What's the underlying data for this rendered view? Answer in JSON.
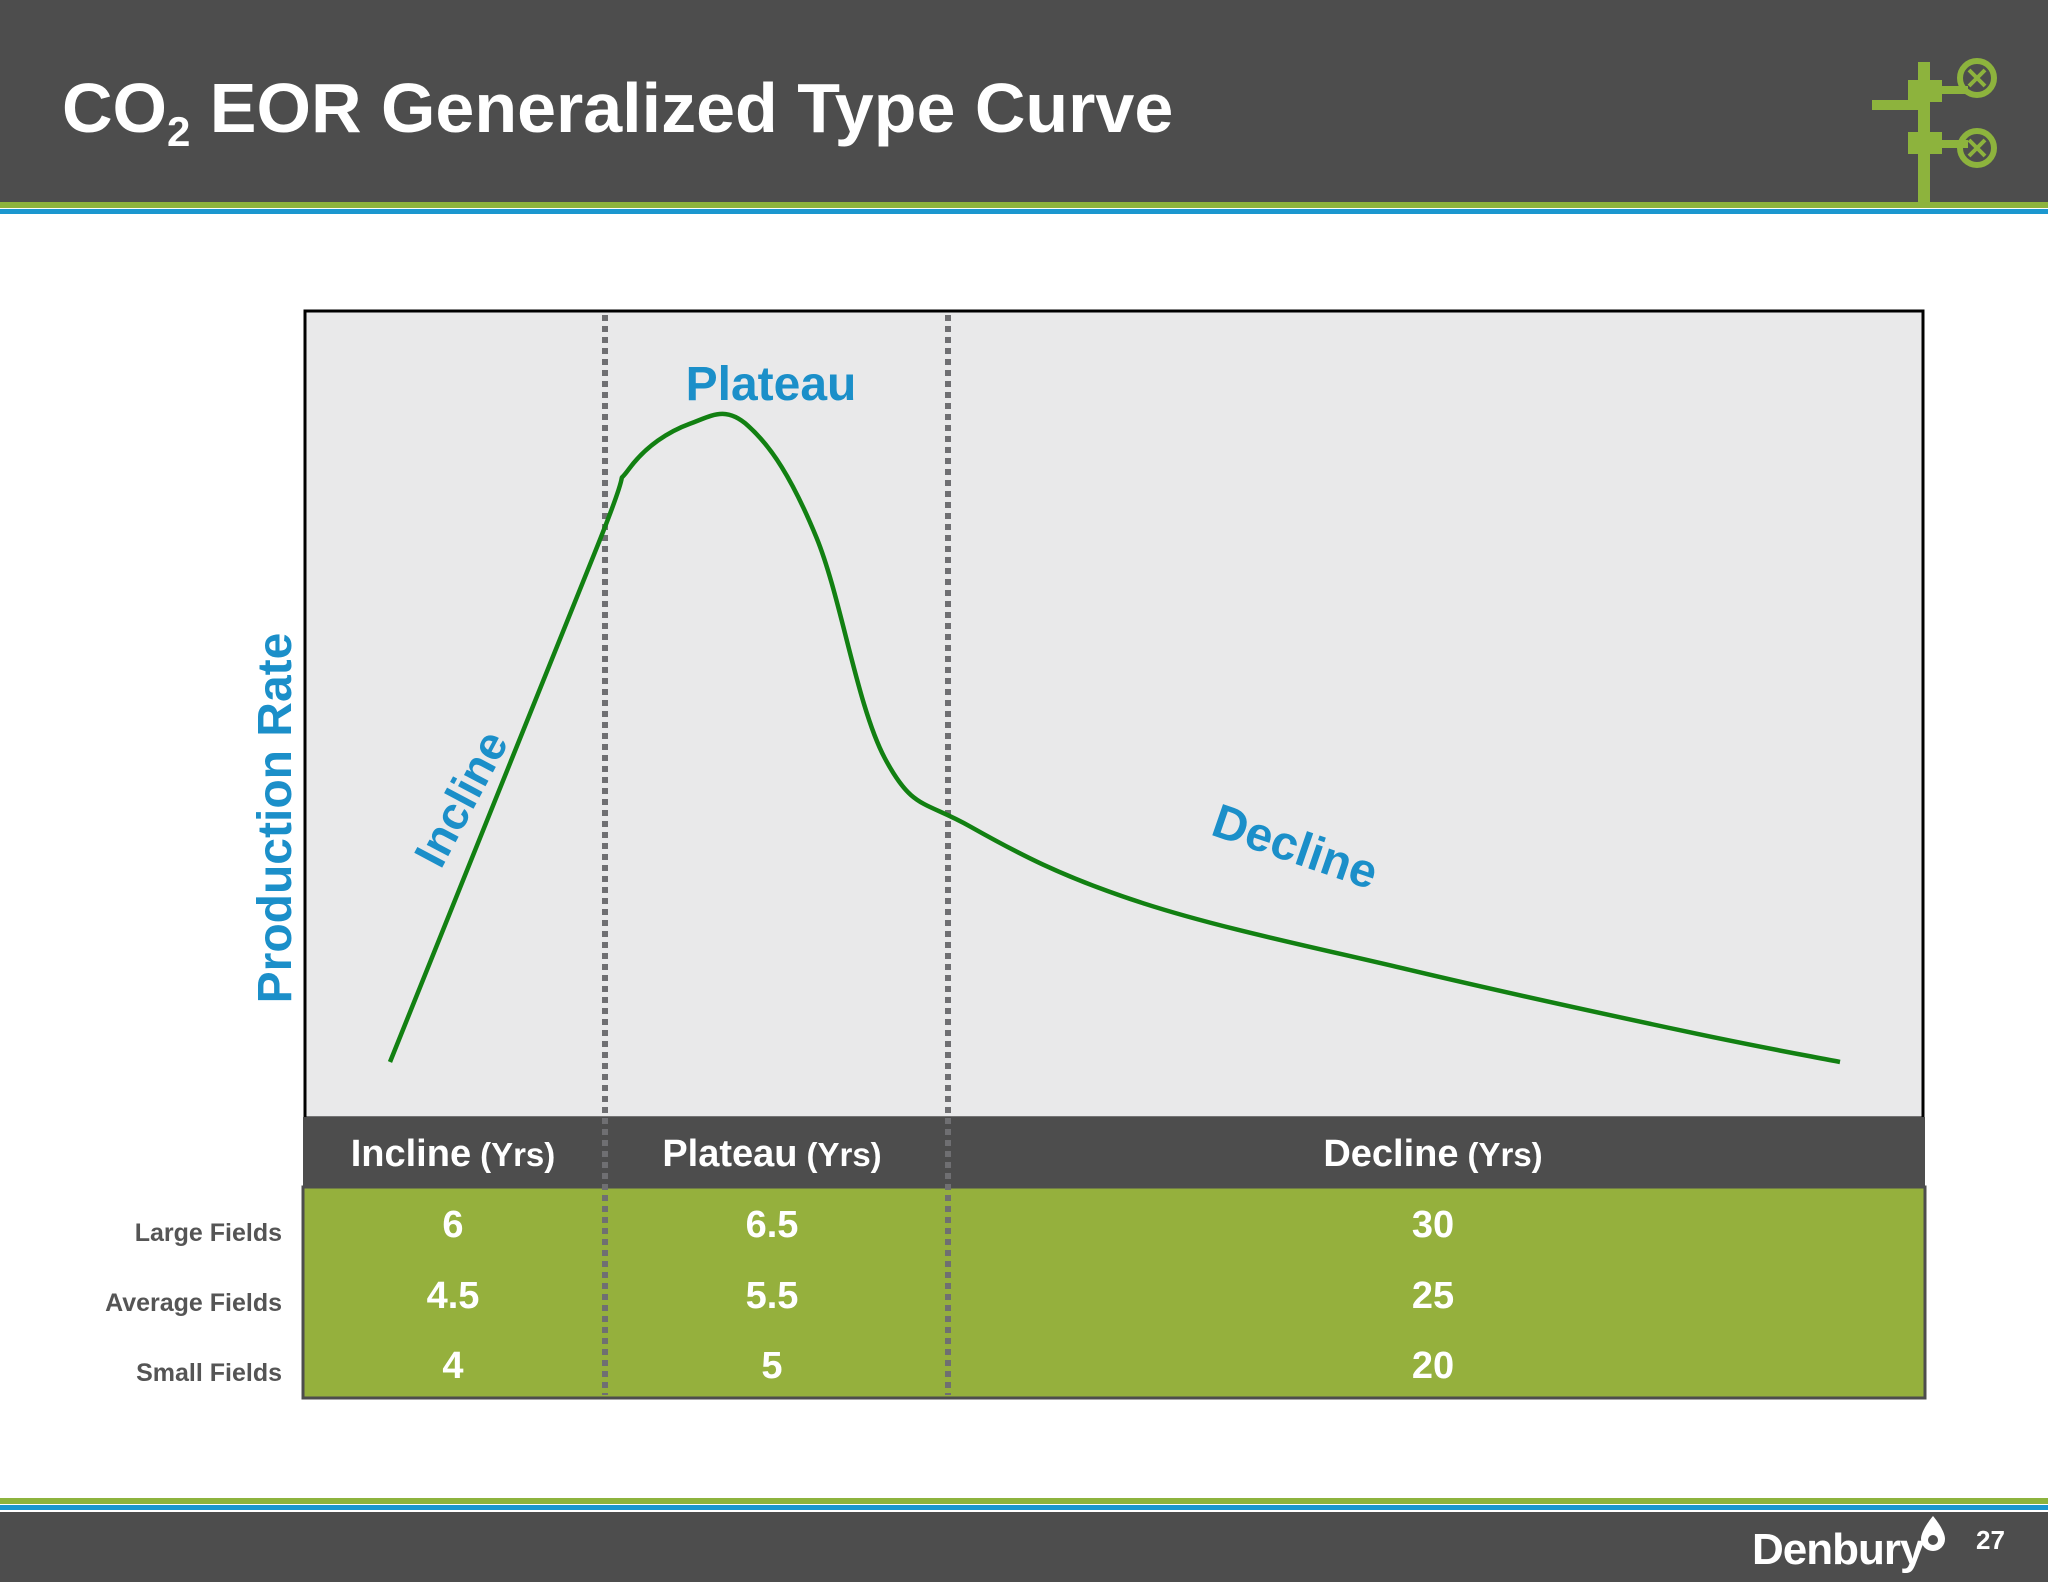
{
  "slide": {
    "title_main": "CO",
    "title_sub": "2",
    "title_rest": " EOR Generalized Type Curve",
    "company": "Denbury",
    "page_number": "27"
  },
  "colors": {
    "header_bg": "#4d4d4d",
    "accent_green": "#8db33d",
    "accent_blue": "#1b97cf",
    "curve": "#128012",
    "table_green": "#95b03d",
    "plot_bg": "#e9e9ea"
  },
  "chart_data": {
    "type": "line",
    "title": "",
    "ylabel": "Production Rate",
    "xlabel": "",
    "phases": [
      "Incline",
      "Plateau",
      "Decline"
    ],
    "series": [
      {
        "values": [
          [
            0,
            0.05
          ],
          [
            6,
            0.72
          ],
          [
            7,
            0.83
          ],
          [
            8.8,
            0.89
          ],
          [
            10.5,
            0.887
          ],
          [
            12.5,
            0.74
          ],
          [
            14.5,
            0.45
          ],
          [
            17,
            0.36
          ],
          [
            22,
            0.26
          ],
          [
            30,
            0.17
          ],
          [
            38,
            0.09
          ],
          [
            42.5,
            0.05
          ]
        ]
      }
    ],
    "table": {
      "columns": [
        {
          "name": "Incline",
          "unit": "(Yrs)"
        },
        {
          "name": "Plateau",
          "unit": "(Yrs)"
        },
        {
          "name": "Decline",
          "unit": "(Yrs)"
        }
      ],
      "rows": [
        {
          "label": "Large Fields",
          "values": [
            "6",
            "6.5",
            "30"
          ]
        },
        {
          "label": "Average Fields",
          "values": [
            "4.5",
            "5.5",
            "25"
          ]
        },
        {
          "label": "Small Fields",
          "values": [
            "4",
            "5",
            "20"
          ]
        }
      ]
    }
  }
}
